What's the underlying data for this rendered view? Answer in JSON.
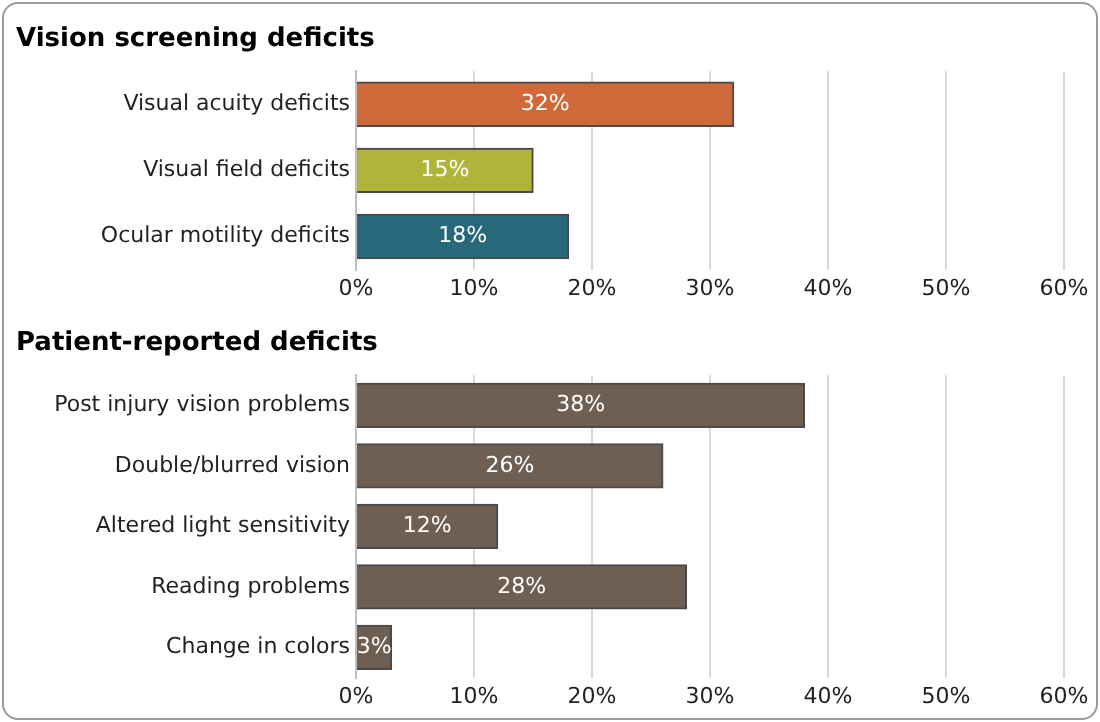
{
  "chart_data": [
    {
      "type": "bar",
      "orientation": "horizontal",
      "title": "Vision screening deficits",
      "categories": [
        "Visual acuity deficits",
        "Visual field deficits",
        "Ocular motility deficits"
      ],
      "values": [
        32,
        15,
        18
      ],
      "colors": [
        "#d0693a",
        "#b1b43a",
        "#27687a"
      ],
      "value_labels": [
        "32%",
        "15%",
        "18%"
      ],
      "xlim": [
        0,
        60
      ],
      "xticks": [
        {
          "value": 0,
          "label": "0%"
        },
        {
          "value": 10,
          "label": "10%"
        },
        {
          "value": 20,
          "label": "20%"
        },
        {
          "value": 30,
          "label": "30%"
        },
        {
          "value": 40,
          "label": "40%"
        },
        {
          "value": 50,
          "label": "50%"
        },
        {
          "value": 60,
          "label": "60%"
        }
      ],
      "grid": "x",
      "legend": false
    },
    {
      "type": "bar",
      "orientation": "horizontal",
      "title": "Patient-reported deficits",
      "categories": [
        "Post injury vision problems",
        "Double/blurred vision",
        "Altered light sensitivity",
        "Reading problems",
        "Change in colors"
      ],
      "values": [
        38,
        26,
        12,
        28,
        3
      ],
      "color": "#6e5f52",
      "value_labels": [
        "38%",
        "26%",
        "12%",
        "28%",
        "3%"
      ],
      "xlim": [
        0,
        60
      ],
      "xticks": [
        {
          "value": 0,
          "label": "0%"
        },
        {
          "value": 10,
          "label": "10%"
        },
        {
          "value": 20,
          "label": "20%"
        },
        {
          "value": 30,
          "label": "30%"
        },
        {
          "value": 40,
          "label": "40%"
        },
        {
          "value": 50,
          "label": "50%"
        },
        {
          "value": 60,
          "label": "60%"
        }
      ],
      "grid": "x",
      "legend": false
    }
  ]
}
